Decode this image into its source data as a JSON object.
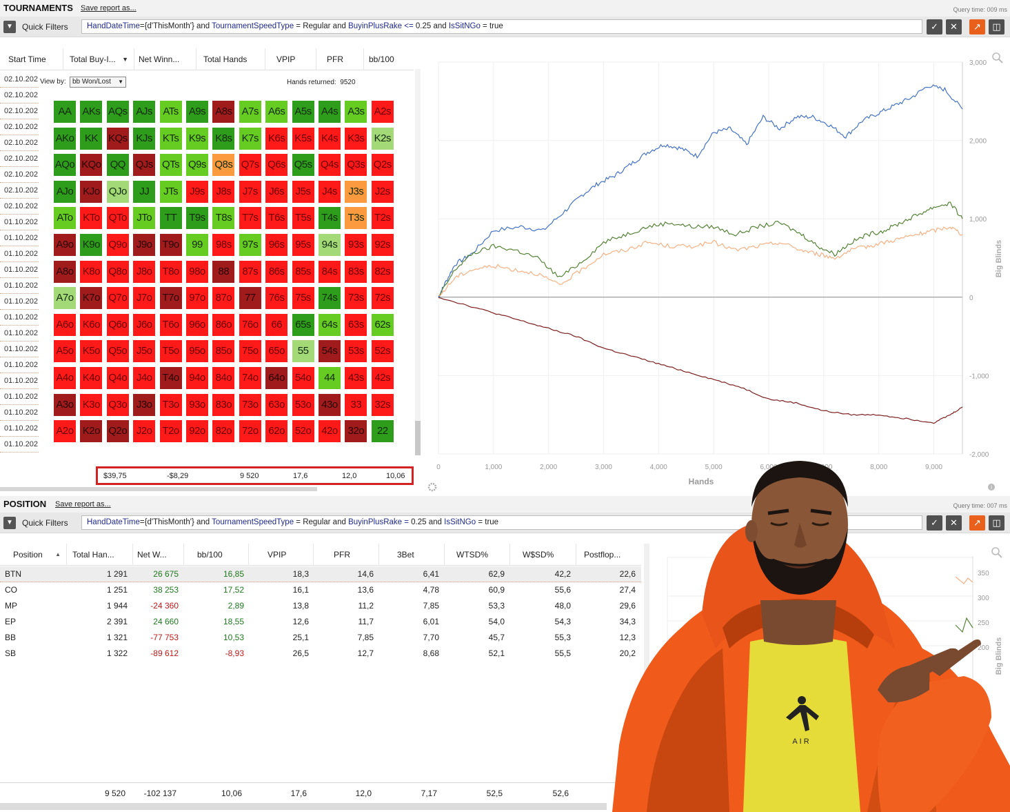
{
  "tournaments": {
    "title": "TOURNAMENTS",
    "save_label": "Save report as...",
    "query_time": "Query time: 009 ms",
    "quick_filters_label": "Quick Filters",
    "filter": {
      "p1": "HandDateTime",
      "p2": "={d'ThisMonth'} and ",
      "p3": "TournamentSpeedType",
      "p4": " = Regular and ",
      "p5": "BuyinPlusRake",
      "p6": " <= ",
      "p7": "0.25 and ",
      "p8": "IsSitNGo",
      "p9": " = true"
    },
    "columns": [
      "Start Time",
      "Total Buy-I...",
      "Net Winn...",
      "Total Hands",
      "VPIP",
      "PFR",
      "bb/100"
    ],
    "dates": [
      "02.10.202",
      "02.10.202",
      "02.10.202",
      "02.10.202",
      "02.10.202",
      "02.10.202",
      "02.10.202",
      "02.10.202",
      "02.10.202",
      "01.10.202",
      "01.10.202",
      "01.10.202",
      "01.10.202",
      "01.10.202",
      "01.10.202",
      "01.10.202",
      "01.10.202",
      "01.10.202",
      "01.10.202",
      "01.10.202",
      "01.10.202",
      "01.10.202",
      "01.10.202",
      "01.10.202"
    ],
    "view_by_label": "View by:",
    "view_by_value": "bb Won/Lost",
    "hands_returned_label": "Hands returned:",
    "hands_returned_value": "9520",
    "totals": [
      "$39,75",
      "-$8,29",
      "9 520",
      "17,6",
      "12,0",
      "10,06"
    ]
  },
  "range_grid": {
    "colors": {
      "dg": "#2e9d1c",
      "lg": "#66cc22",
      "pg": "#a3d977",
      "or": "#fb9a3e",
      "rd": "#ff1a1a",
      "dr": "#a01c1c"
    },
    "rows": [
      [
        [
          "AA",
          "dg"
        ],
        [
          "AKs",
          "dg"
        ],
        [
          "AQs",
          "dg"
        ],
        [
          "AJs",
          "dg"
        ],
        [
          "ATs",
          "lg"
        ],
        [
          "A9s",
          "dg"
        ],
        [
          "A8s",
          "dr"
        ],
        [
          "A7s",
          "lg"
        ],
        [
          "A6s",
          "lg"
        ],
        [
          "A5s",
          "dg"
        ],
        [
          "A4s",
          "dg"
        ],
        [
          "A3s",
          "lg"
        ],
        [
          "A2s",
          "rd"
        ]
      ],
      [
        [
          "AKo",
          "dg"
        ],
        [
          "KK",
          "dg"
        ],
        [
          "KQs",
          "dr"
        ],
        [
          "KJs",
          "dg"
        ],
        [
          "KTs",
          "lg"
        ],
        [
          "K9s",
          "lg"
        ],
        [
          "K8s",
          "dg"
        ],
        [
          "K7s",
          "lg"
        ],
        [
          "K6s",
          "rd"
        ],
        [
          "K5s",
          "rd"
        ],
        [
          "K4s",
          "rd"
        ],
        [
          "K3s",
          "rd"
        ],
        [
          "K2s",
          "pg"
        ]
      ],
      [
        [
          "AQo",
          "dg"
        ],
        [
          "KQo",
          "dr"
        ],
        [
          "QQ",
          "dg"
        ],
        [
          "QJs",
          "dr"
        ],
        [
          "QTs",
          "lg"
        ],
        [
          "Q9s",
          "lg"
        ],
        [
          "Q8s",
          "or"
        ],
        [
          "Q7s",
          "rd"
        ],
        [
          "Q6s",
          "rd"
        ],
        [
          "Q5s",
          "dg"
        ],
        [
          "Q4s",
          "rd"
        ],
        [
          "Q3s",
          "rd"
        ],
        [
          "Q2s",
          "rd"
        ]
      ],
      [
        [
          "AJo",
          "dg"
        ],
        [
          "KJo",
          "dr"
        ],
        [
          "QJo",
          "pg"
        ],
        [
          "JJ",
          "dg"
        ],
        [
          "JTs",
          "lg"
        ],
        [
          "J9s",
          "rd"
        ],
        [
          "J8s",
          "rd"
        ],
        [
          "J7s",
          "rd"
        ],
        [
          "J6s",
          "rd"
        ],
        [
          "J5s",
          "rd"
        ],
        [
          "J4s",
          "rd"
        ],
        [
          "J3s",
          "or"
        ],
        [
          "J2s",
          "rd"
        ]
      ],
      [
        [
          "ATo",
          "lg"
        ],
        [
          "KTo",
          "rd"
        ],
        [
          "QTo",
          "rd"
        ],
        [
          "JTo",
          "lg"
        ],
        [
          "TT",
          "dg"
        ],
        [
          "T9s",
          "dg"
        ],
        [
          "T8s",
          "lg"
        ],
        [
          "T7s",
          "rd"
        ],
        [
          "T6s",
          "rd"
        ],
        [
          "T5s",
          "rd"
        ],
        [
          "T4s",
          "dg"
        ],
        [
          "T3s",
          "or"
        ],
        [
          "T2s",
          "rd"
        ]
      ],
      [
        [
          "A9o",
          "dr"
        ],
        [
          "K9o",
          "dg"
        ],
        [
          "Q9o",
          "rd"
        ],
        [
          "J9o",
          "dr"
        ],
        [
          "T9o",
          "dr"
        ],
        [
          "99",
          "lg"
        ],
        [
          "98s",
          "rd"
        ],
        [
          "97s",
          "lg"
        ],
        [
          "96s",
          "rd"
        ],
        [
          "95s",
          "rd"
        ],
        [
          "94s",
          "pg"
        ],
        [
          "93s",
          "rd"
        ],
        [
          "92s",
          "rd"
        ]
      ],
      [
        [
          "A8o",
          "dr"
        ],
        [
          "K8o",
          "rd"
        ],
        [
          "Q8o",
          "rd"
        ],
        [
          "J8o",
          "rd"
        ],
        [
          "T8o",
          "rd"
        ],
        [
          "98o",
          "rd"
        ],
        [
          "88",
          "dr"
        ],
        [
          "87s",
          "rd"
        ],
        [
          "86s",
          "rd"
        ],
        [
          "85s",
          "rd"
        ],
        [
          "84s",
          "rd"
        ],
        [
          "83s",
          "rd"
        ],
        [
          "82s",
          "rd"
        ]
      ],
      [
        [
          "A7o",
          "pg"
        ],
        [
          "K7o",
          "dr"
        ],
        [
          "Q7o",
          "rd"
        ],
        [
          "J7o",
          "rd"
        ],
        [
          "T7o",
          "dr"
        ],
        [
          "97o",
          "rd"
        ],
        [
          "87o",
          "rd"
        ],
        [
          "77",
          "dr"
        ],
        [
          "76s",
          "rd"
        ],
        [
          "75s",
          "rd"
        ],
        [
          "74s",
          "dg"
        ],
        [
          "73s",
          "rd"
        ],
        [
          "72s",
          "rd"
        ]
      ],
      [
        [
          "A6o",
          "rd"
        ],
        [
          "K6o",
          "rd"
        ],
        [
          "Q6o",
          "rd"
        ],
        [
          "J6o",
          "rd"
        ],
        [
          "T6o",
          "rd"
        ],
        [
          "96o",
          "rd"
        ],
        [
          "86o",
          "rd"
        ],
        [
          "76o",
          "rd"
        ],
        [
          "66",
          "rd"
        ],
        [
          "65s",
          "dg"
        ],
        [
          "64s",
          "lg"
        ],
        [
          "63s",
          "rd"
        ],
        [
          "62s",
          "lg"
        ]
      ],
      [
        [
          "A5o",
          "rd"
        ],
        [
          "K5o",
          "rd"
        ],
        [
          "Q5o",
          "rd"
        ],
        [
          "J5o",
          "rd"
        ],
        [
          "T5o",
          "rd"
        ],
        [
          "95o",
          "rd"
        ],
        [
          "85o",
          "rd"
        ],
        [
          "75o",
          "rd"
        ],
        [
          "65o",
          "rd"
        ],
        [
          "55",
          "pg"
        ],
        [
          "54s",
          "dr"
        ],
        [
          "53s",
          "rd"
        ],
        [
          "52s",
          "rd"
        ]
      ],
      [
        [
          "A4o",
          "rd"
        ],
        [
          "K4o",
          "rd"
        ],
        [
          "Q4o",
          "rd"
        ],
        [
          "J4o",
          "rd"
        ],
        [
          "T4o",
          "dr"
        ],
        [
          "94o",
          "rd"
        ],
        [
          "84o",
          "rd"
        ],
        [
          "74o",
          "rd"
        ],
        [
          "64o",
          "dr"
        ],
        [
          "54o",
          "rd"
        ],
        [
          "44",
          "lg"
        ],
        [
          "43s",
          "rd"
        ],
        [
          "42s",
          "rd"
        ]
      ],
      [
        [
          "A3o",
          "dr"
        ],
        [
          "K3o",
          "rd"
        ],
        [
          "Q3o",
          "rd"
        ],
        [
          "J3o",
          "dr"
        ],
        [
          "T3o",
          "rd"
        ],
        [
          "93o",
          "rd"
        ],
        [
          "83o",
          "rd"
        ],
        [
          "73o",
          "rd"
        ],
        [
          "63o",
          "rd"
        ],
        [
          "53o",
          "rd"
        ],
        [
          "43o",
          "dr"
        ],
        [
          "33",
          "rd"
        ],
        [
          "32s",
          "rd"
        ]
      ],
      [
        [
          "A2o",
          "rd"
        ],
        [
          "K2o",
          "dr"
        ],
        [
          "Q2o",
          "dr"
        ],
        [
          "J2o",
          "rd"
        ],
        [
          "T2o",
          "rd"
        ],
        [
          "92o",
          "rd"
        ],
        [
          "82o",
          "rd"
        ],
        [
          "72o",
          "rd"
        ],
        [
          "62o",
          "rd"
        ],
        [
          "52o",
          "rd"
        ],
        [
          "42o",
          "rd"
        ],
        [
          "32o",
          "dr"
        ],
        [
          "22",
          "dg"
        ]
      ]
    ]
  },
  "chart_data": {
    "type": "line",
    "title": "",
    "xlabel": "Hands",
    "ylabel": "Big Blinds",
    "xlim": [
      0,
      9520
    ],
    "ylim": [
      -2000,
      3000
    ],
    "x_ticks": [
      "0",
      "1,000",
      "2,000",
      "3,000",
      "4,000",
      "5,000",
      "6,000",
      "7,000",
      "8,000",
      "9,000"
    ],
    "y_ticks": [
      "3,000",
      "2,000",
      "1,000",
      "0",
      "-1,000",
      "-2,000"
    ],
    "grid": true,
    "series": [
      {
        "color": "#4472c4",
        "x": [
          0,
          100,
          300,
          600,
          1000,
          1500,
          1900,
          2300,
          2600,
          2900,
          3200,
          3500,
          3800,
          4100,
          4400,
          4700,
          5000,
          5300,
          5600,
          5900,
          6200,
          6500,
          6800,
          7100,
          7400,
          7700,
          8000,
          8300,
          8600,
          8900,
          9200,
          9520
        ],
        "values": [
          0,
          150,
          420,
          550,
          850,
          900,
          850,
          1100,
          1300,
          1450,
          1550,
          1700,
          1850,
          1950,
          1900,
          1800,
          2100,
          2150,
          1950,
          2300,
          2150,
          2300,
          2300,
          2200,
          2050,
          2250,
          2350,
          2450,
          2550,
          2700,
          2650,
          2400
        ]
      },
      {
        "color": "#548235",
        "x": [
          0,
          300,
          600,
          1000,
          1400,
          1800,
          2200,
          2600,
          3000,
          3400,
          3800,
          4200,
          4600,
          5000,
          5400,
          5800,
          6200,
          6600,
          6900,
          7200,
          7500,
          7800,
          8100,
          8400,
          8700,
          9000,
          9300,
          9520
        ],
        "values": [
          0,
          350,
          550,
          650,
          600,
          500,
          250,
          450,
          700,
          800,
          900,
          950,
          900,
          900,
          800,
          900,
          950,
          800,
          650,
          550,
          700,
          800,
          850,
          950,
          1050,
          1150,
          1200,
          1000
        ]
      },
      {
        "color": "#f4b183",
        "x": [
          0,
          300,
          600,
          1000,
          1400,
          1800,
          2200,
          2600,
          3000,
          3400,
          3800,
          4200,
          4600,
          5000,
          5400,
          5800,
          6200,
          6600,
          6900,
          7200,
          7500,
          7800,
          8100,
          8400,
          8700,
          9000,
          9300,
          9520
        ],
        "values": [
          0,
          250,
          350,
          400,
          350,
          300,
          150,
          350,
          550,
          600,
          700,
          650,
          650,
          700,
          600,
          650,
          700,
          600,
          550,
          500,
          600,
          650,
          700,
          750,
          800,
          850,
          900,
          800
        ]
      },
      {
        "color": "#7b1e1e",
        "x": [
          0,
          500,
          1000,
          1500,
          2000,
          2500,
          3000,
          3500,
          4000,
          4500,
          5000,
          5500,
          6000,
          6500,
          7000,
          7500,
          8000,
          8500,
          9000,
          9300,
          9520
        ],
        "values": [
          0,
          -100,
          -200,
          -300,
          -400,
          -500,
          -650,
          -750,
          -850,
          -950,
          -1050,
          -1150,
          -1300,
          -1350,
          -1450,
          -1500,
          -1500,
          -1550,
          -1600,
          -1500,
          -1400
        ]
      }
    ]
  },
  "position": {
    "title": "POSITION",
    "save_label": "Save report as...",
    "query_time": "Query time: 007 ms",
    "quick_filters_label": "Quick Filters",
    "filter": {
      "p1": "HandDateTime",
      "p2": "={d'ThisMonth'} and ",
      "p3": "TournamentSpeedType",
      "p4": " = Regular and ",
      "p5": "BuyinPlusRake",
      "p6": " = ",
      "p7": "0.25 and ",
      "p8": "IsSitNGo",
      "p9": " = true"
    },
    "columns": [
      "Position",
      "Total Han...",
      "Net W...",
      "bb/100",
      "VPIP",
      "PFR",
      "3Bet",
      "WTSD%",
      "W$SD%",
      "Postflop..."
    ],
    "rows": [
      {
        "pos": "BTN",
        "hands": "1 291",
        "net": "26 675",
        "bb": "16,85",
        "vpip": "18,3",
        "pfr": "14,6",
        "tb": "6,41",
        "wtsd": "62,9",
        "wsd": "42,2",
        "post": "22,6"
      },
      {
        "pos": "CO",
        "hands": "1 251",
        "net": "38 253",
        "bb": "17,52",
        "vpip": "16,1",
        "pfr": "13,6",
        "tb": "4,78",
        "wtsd": "60,9",
        "wsd": "55,6",
        "post": "27,4"
      },
      {
        "pos": "MP",
        "hands": "1 944",
        "net": "-24 360",
        "bb": "2,89",
        "vpip": "13,8",
        "pfr": "11,2",
        "tb": "7,85",
        "wtsd": "53,3",
        "wsd": "48,0",
        "post": "29,6"
      },
      {
        "pos": "EP",
        "hands": "2 391",
        "net": "24 660",
        "bb": "18,55",
        "vpip": "12,6",
        "pfr": "11,7",
        "tb": "6,01",
        "wtsd": "54,0",
        "wsd": "54,3",
        "post": "34,3"
      },
      {
        "pos": "BB",
        "hands": "1 321",
        "net": "-77 753",
        "bb": "10,53",
        "vpip": "25,1",
        "pfr": "7,85",
        "tb": "7,70",
        "wtsd": "45,7",
        "wsd": "55,3",
        "post": "12,3"
      },
      {
        "pos": "SB",
        "hands": "1 322",
        "net": "-89 612",
        "bb": "-8,93",
        "vpip": "26,5",
        "pfr": "12,7",
        "tb": "8,68",
        "wtsd": "52,1",
        "wsd": "55,5",
        "post": "20,2"
      }
    ],
    "totals": {
      "hands": "9 520",
      "net": "-102 137",
      "bb": "10,06",
      "vpip": "17,6",
      "pfr": "12,0",
      "tb": "7,17",
      "wtsd": "52,5",
      "wsd": "52,6"
    },
    "mini_chart_ticks": [
      "350",
      "300",
      "250",
      "200"
    ],
    "mini_chart_ylabel": "Big Blinds"
  },
  "meme": {
    "shirt_text": "AIR"
  }
}
